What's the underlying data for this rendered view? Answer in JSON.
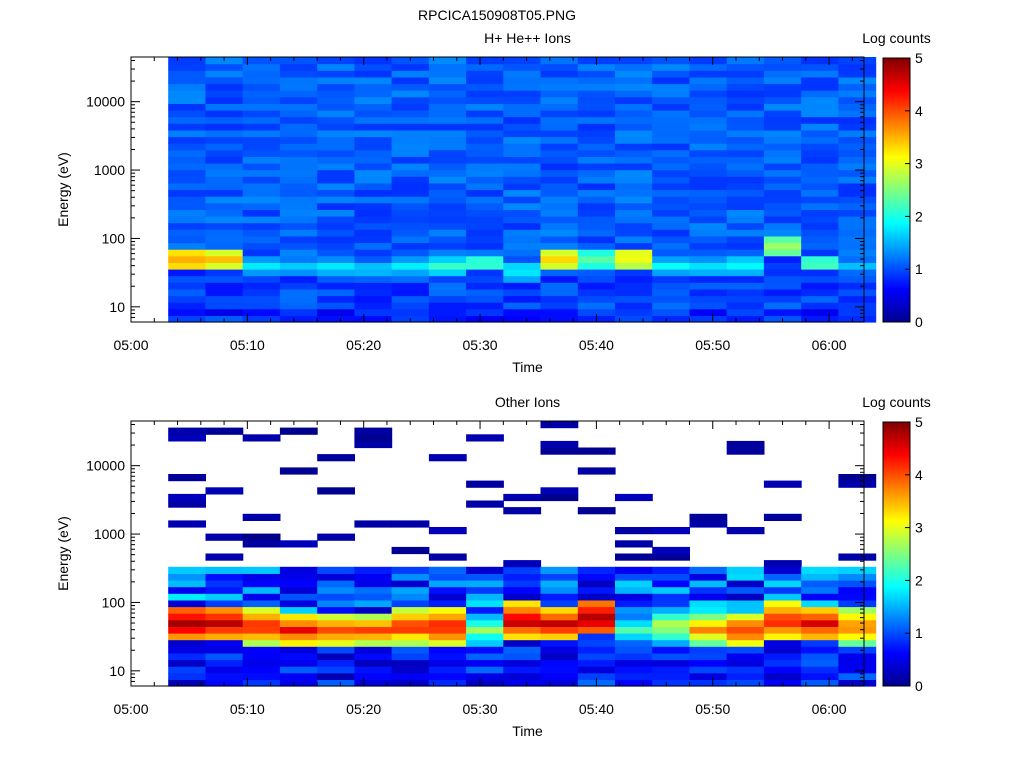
{
  "figure_title": "RPCICA150908T05.PNG",
  "chart_data": [
    {
      "type": "heatmap",
      "title": "H+ He++ Ions",
      "xlabel": "Time",
      "ylabel": "Energy (eV)",
      "x_ticks": [
        "05:00",
        "05:10",
        "05:20",
        "05:30",
        "05:40",
        "05:50",
        "06:00"
      ],
      "x_range_minutes": [
        0,
        63
      ],
      "y_scale": "log",
      "y_ticks": [
        10,
        100,
        1000,
        10000
      ],
      "y_tick_labels": [
        "10",
        "100",
        "1000",
        "10000"
      ],
      "y_range": [
        6,
        45000
      ],
      "colorbar_label": "Log counts",
      "colorbar_ticks": [
        "0",
        "1",
        "2",
        "3",
        "4",
        "5"
      ],
      "colorbar_range": [
        0,
        5
      ],
      "time_bins_minutes": [
        3.2,
        6.4,
        9.6,
        12.8,
        16.0,
        19.2,
        22.4,
        25.6,
        28.8,
        32.0,
        35.2,
        38.4,
        41.6,
        44.8,
        48.0,
        51.2,
        54.4,
        57.6,
        60.8
      ],
      "peak_log_counts_per_time_bin": [
        3.5,
        3.3,
        1.6,
        1.6,
        1.7,
        1.6,
        1.7,
        2.0,
        2.2,
        1.8,
        3.3,
        2.3,
        3.2,
        1.8,
        1.7,
        1.8,
        2.6,
        2.2,
        1.5
      ],
      "peak_energy_eV_per_time_bin": [
        50,
        50,
        40,
        40,
        40,
        35,
        40,
        40,
        45,
        35,
        50,
        50,
        55,
        40,
        40,
        40,
        80,
        45,
        40
      ]
    },
    {
      "type": "heatmap",
      "title": "Other Ions",
      "xlabel": "Time",
      "ylabel": "Energy (eV)",
      "x_ticks": [
        "05:00",
        "05:10",
        "05:20",
        "05:30",
        "05:40",
        "05:50",
        "06:00"
      ],
      "x_range_minutes": [
        0,
        63
      ],
      "y_scale": "log",
      "y_ticks": [
        10,
        100,
        1000,
        10000
      ],
      "y_tick_labels": [
        "10",
        "100",
        "1000",
        "10000"
      ],
      "y_range": [
        6,
        45000
      ],
      "colorbar_label": "Log counts",
      "colorbar_ticks": [
        "0",
        "1",
        "2",
        "3",
        "4",
        "5"
      ],
      "colorbar_range": [
        0,
        5
      ],
      "time_bins_minutes": [
        3.2,
        6.4,
        9.6,
        12.8,
        16.0,
        19.2,
        22.4,
        25.6,
        28.8,
        32.0,
        35.2,
        38.4,
        41.6,
        44.8,
        48.0,
        51.2,
        54.4,
        57.6,
        60.8
      ],
      "peak_log_counts_per_time_bin": [
        4.8,
        4.6,
        4.1,
        4.2,
        4.0,
        3.8,
        4.1,
        4.3,
        2.5,
        4.6,
        4.4,
        4.8,
        2.2,
        2.8,
        3.5,
        4.0,
        4.3,
        4.4,
        3.8
      ],
      "peak_energy_eV_per_time_bin": [
        50,
        50,
        45,
        40,
        40,
        40,
        45,
        45,
        40,
        55,
        50,
        60,
        40,
        45,
        40,
        40,
        55,
        50,
        45
      ]
    }
  ]
}
